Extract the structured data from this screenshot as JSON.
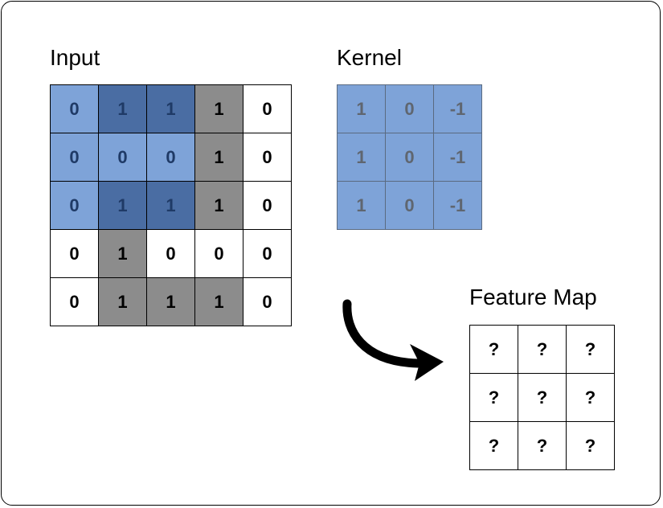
{
  "input": {
    "title": "Input",
    "rows": [
      [
        "0",
        "1",
        "1",
        "1",
        "0"
      ],
      [
        "0",
        "0",
        "0",
        "1",
        "0"
      ],
      [
        "0",
        "1",
        "1",
        "1",
        "0"
      ],
      [
        "0",
        "1",
        "0",
        "0",
        "0"
      ],
      [
        "0",
        "1",
        "1",
        "1",
        "0"
      ]
    ],
    "fills": [
      [
        "light-blue",
        "dark-blue",
        "dark-blue",
        "gray",
        "white"
      ],
      [
        "light-blue",
        "light-blue",
        "light-blue",
        "gray",
        "white"
      ],
      [
        "light-blue",
        "dark-blue",
        "dark-blue",
        "gray",
        "white"
      ],
      [
        "white",
        "gray",
        "white",
        "white",
        "white"
      ],
      [
        "white",
        "gray",
        "gray",
        "gray",
        "white"
      ]
    ]
  },
  "kernel": {
    "title": "Kernel",
    "rows": [
      [
        "1",
        "0",
        "-1"
      ],
      [
        "1",
        "0",
        "-1"
      ],
      [
        "1",
        "0",
        "-1"
      ]
    ]
  },
  "feature_map": {
    "title": "Feature Map",
    "rows": [
      [
        "?",
        "?",
        "?"
      ],
      [
        "?",
        "?",
        "?"
      ],
      [
        "?",
        "?",
        "?"
      ]
    ]
  },
  "colors": {
    "light-blue": "#7ea3d8",
    "dark-blue": "#4a6da3",
    "gray": "#8c8c8c",
    "white": "#ffffff",
    "kernel_fill": "#7ea3d8",
    "kernel_text": "#5f6670",
    "blue_text": "#1f3a66",
    "black_text": "#000000",
    "arrow": "#000000"
  },
  "icons": {
    "arrow": "curved-arrow-icon"
  }
}
